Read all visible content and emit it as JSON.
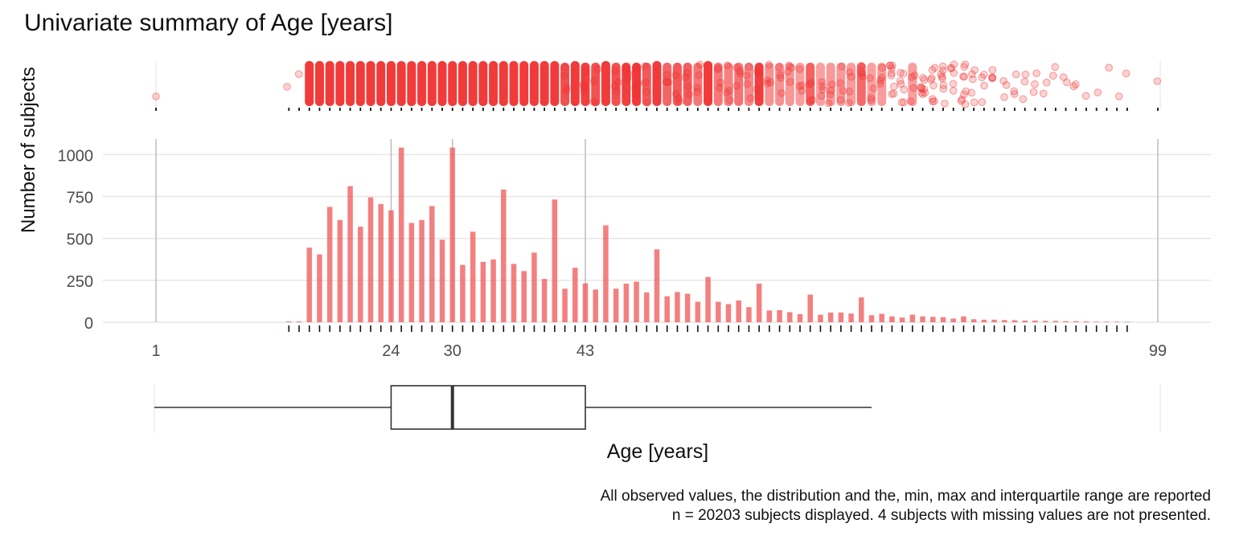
{
  "title": "Univariate summary of Age [years]",
  "caption_line1": "All observed values, the distribution and the, min, max and interquartile range are reported",
  "caption_line2": "n = 20203 subjects displayed. 4 subjects with missing values are not presented.",
  "chart_data": {
    "type": "bar",
    "title": "Univariate summary of Age [years]",
    "xlabel": "Age [years]",
    "ylabel": "Number of subjects",
    "xlim": [
      1,
      99
    ],
    "ylim": [
      0,
      1100
    ],
    "yticks": [
      0,
      250,
      500,
      750,
      1000
    ],
    "xticks": [
      1,
      24,
      30,
      43,
      99
    ],
    "grid": true,
    "bar_color": "#f06060",
    "point_color": "#f03030",
    "reference_lines": [
      1,
      24,
      30,
      43,
      99
    ],
    "series": [
      {
        "x": [
          14,
          15,
          16,
          17,
          18,
          19,
          20,
          21,
          22,
          23,
          24,
          25,
          26,
          27,
          28,
          29,
          30,
          31,
          32,
          33,
          34,
          35,
          36,
          37,
          38,
          39,
          40,
          41,
          42,
          43,
          44,
          45,
          46,
          47,
          48,
          49,
          50,
          51,
          52,
          53,
          54,
          55,
          56,
          57,
          58,
          59,
          60,
          61,
          62,
          63,
          64,
          65,
          66,
          67,
          68,
          69,
          70,
          71,
          72,
          73,
          74,
          75,
          76,
          77,
          78,
          79,
          80,
          81,
          82,
          83,
          84,
          85,
          86,
          87,
          88,
          89,
          90,
          91,
          92,
          93,
          94,
          95,
          96
        ],
        "values": [
          5,
          5,
          445,
          405,
          688,
          610,
          812,
          570,
          745,
          705,
          668,
          1042,
          592,
          610,
          693,
          492,
          1042,
          342,
          540,
          360,
          375,
          792,
          348,
          305,
          415,
          258,
          732,
          200,
          325,
          232,
          195,
          578,
          200,
          230,
          242,
          178,
          435,
          155,
          180,
          170,
          122,
          270,
          122,
          108,
          130,
          90,
          230,
          70,
          72,
          60,
          48,
          165,
          45,
          58,
          58,
          52,
          148,
          42,
          50,
          35,
          28,
          45,
          35,
          32,
          30,
          22,
          35,
          18,
          15,
          15,
          13,
          12,
          10,
          10,
          8,
          8,
          6,
          6,
          5,
          3,
          3,
          3,
          2
        ]
      }
    ],
    "boxplot": {
      "min": 1,
      "q1": 24,
      "median": 30,
      "q3": 43,
      "whisker_high": 71,
      "max": 99
    },
    "n_displayed": 20203,
    "n_missing": 4
  }
}
